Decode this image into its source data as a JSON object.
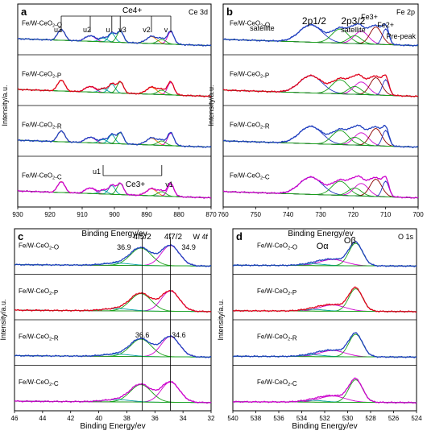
{
  "panels": [
    {
      "id": "a",
      "letter": "a",
      "corner_label": "Ce 3d",
      "xlabel": "Binding Energy/ev",
      "ylabel": "Intensity/a.u.",
      "xlim": [
        870,
        930
      ],
      "xticks": [
        930,
        920,
        910,
        900,
        890,
        880,
        870
      ],
      "chart_data": {
        "type": "line",
        "samples": [
          "Fe/W-CeO2-O",
          "Fe/W-CeO2-P",
          "Fe/W-CeO2-R",
          "Fe/W-CeO2-C"
        ],
        "annotations": [
          "u3",
          "u2",
          "u",
          "v3",
          "v2",
          "v",
          "Ce4+",
          "u1",
          "Ce3+",
          "v1"
        ],
        "peaks_eV": [
          916.5,
          907.5,
          900.8,
          898.2,
          888.5,
          882.5
        ],
        "colors": [
          "#1f3fbf",
          "#e0001b",
          "#1f3fbf",
          "#cc00cc"
        ]
      }
    },
    {
      "id": "b",
      "letter": "b",
      "corner_label": "Fe 2p",
      "xlabel": "Binding Energy/ev",
      "ylabel": "Intensity/a.u.",
      "xlim": [
        700,
        760
      ],
      "xticks": [
        760,
        750,
        740,
        730,
        720,
        710,
        700
      ],
      "chart_data": {
        "type": "line",
        "samples": [
          "Fe/W-CeO2-O",
          "Fe/W-CeO2-P",
          "Fe/W-CeO2-R",
          "Fe/W-CeO2-C"
        ],
        "annotations": [
          "satellite",
          "2p1/2",
          "2p3/2",
          "satellite",
          "Fe3+",
          "Fe2+",
          "Pre-peak"
        ],
        "peaks_eV": [
          733,
          724,
          717,
          713,
          710
        ],
        "colors": [
          "#1f3fbf",
          "#e0001b",
          "#1f3fbf",
          "#cc00cc"
        ]
      }
    },
    {
      "id": "c",
      "letter": "c",
      "corner_label": "W 4f",
      "xlabel": "Binding Energy/ev",
      "ylabel": "Intensity/a.u.",
      "xlim": [
        32,
        46
      ],
      "xticks": [
        46,
        44,
        42,
        40,
        38,
        36,
        34,
        32
      ],
      "chart_data": {
        "type": "line",
        "samples": [
          "Fe/W-CeO2-O",
          "Fe/W-CeO2-P",
          "Fe/W-CeO2-R",
          "Fe/W-CeO2-C"
        ],
        "annotations": [
          "4f5/2",
          "4f7/2",
          "36.9",
          "34.9",
          "36.6",
          "34.6"
        ],
        "peaks_eV": [
          36.9,
          34.9,
          36.6,
          34.6
        ],
        "colors": [
          "#1f3fbf",
          "#e0001b",
          "#1f3fbf",
          "#cc00cc"
        ]
      }
    },
    {
      "id": "d",
      "letter": "d",
      "corner_label": "O 1s",
      "xlabel": "Binding Energy/ev",
      "ylabel": "Intensity/a.u.",
      "xlim": [
        524,
        540
      ],
      "xticks": [
        540,
        538,
        536,
        534,
        532,
        530,
        528,
        526,
        524
      ],
      "chart_data": {
        "type": "line",
        "samples": [
          "Fe/W-CeO2-O",
          "Fe/W-CeO2-P",
          "Fe/W-CeO2-R",
          "Fe/W-CeO2-C"
        ],
        "annotations": [
          "Oα",
          "Oβ"
        ],
        "peaks_eV": [
          531.5,
          529.3
        ],
        "colors": [
          "#1f3fbf",
          "#e0001b",
          "#1f3fbf",
          "#cc00cc"
        ]
      }
    }
  ]
}
